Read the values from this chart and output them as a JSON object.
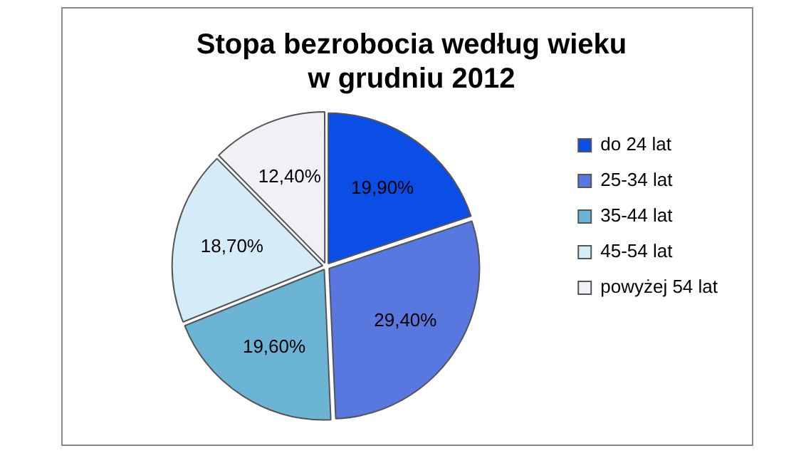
{
  "chart_data": {
    "type": "pie",
    "title": "Stopa bezrobocia według wieku\nw grudniu 2012",
    "categories": [
      "do 24 lat",
      "25-34 lat",
      "35-44 lat",
      "45-54 lat",
      "powyżej 54 lat"
    ],
    "values": [
      19.9,
      29.4,
      19.6,
      18.7,
      12.4
    ],
    "value_labels": [
      "19,90%",
      "29,40%",
      "19,60%",
      "18,70%",
      "12,40%"
    ],
    "colors": [
      "#0b4ee6",
      "#5878e0",
      "#6bb4d4",
      "#d3ecf7",
      "#f0f0f6"
    ],
    "legend": "right"
  }
}
